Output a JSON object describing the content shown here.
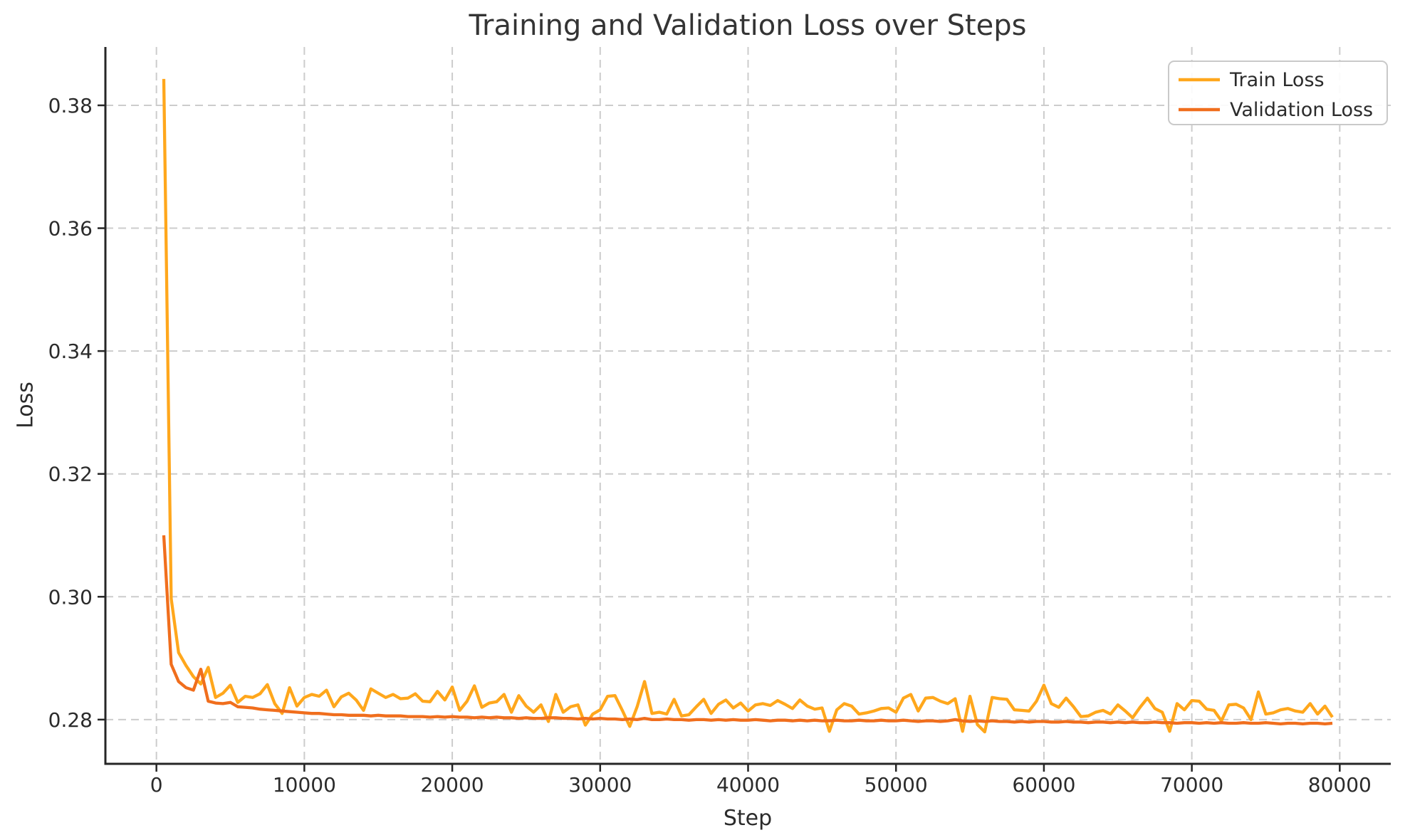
{
  "figure": {
    "background": "#ffffff",
    "title": "Training and Validation Loss over Steps",
    "xlabel": "Step",
    "ylabel": "Loss"
  },
  "styles": {
    "grid_color": "#cccccc",
    "spine_color": "#262626",
    "tick_color": "#262626",
    "tick_label_color": "#2b2b2b",
    "legend_border_color": "#c9c9c9",
    "legend_bg_color": "#ffffff",
    "train_color": "#FFA71C",
    "validation_color": "#F06E1D"
  },
  "chart_data": {
    "type": "line",
    "title": "Training and Validation Loss over Steps",
    "xlabel": "Step",
    "ylabel": "Loss",
    "grid": true,
    "grid_style": "dashed",
    "legend_position": "upper right",
    "xlim": [
      -3450,
      83450
    ],
    "ylim": [
      0.2728,
      0.3895
    ],
    "x_ticks": [
      0,
      10000,
      20000,
      30000,
      40000,
      50000,
      60000,
      70000,
      80000
    ],
    "y_ticks": [
      0.28,
      0.3,
      0.32,
      0.34,
      0.36,
      0.38
    ],
    "x": [
      500,
      1000,
      1500,
      2000,
      2500,
      3000,
      3500,
      4000,
      4500,
      5000,
      5500,
      6000,
      6500,
      7000,
      7500,
      8000,
      8500,
      9000,
      9500,
      10000,
      10500,
      11000,
      11500,
      12000,
      12500,
      13000,
      13500,
      14000,
      14500,
      15000,
      15500,
      16000,
      16500,
      17000,
      17500,
      18000,
      18500,
      19000,
      19500,
      20000,
      20500,
      21000,
      21500,
      22000,
      22500,
      23000,
      23500,
      24000,
      24500,
      25000,
      25500,
      26000,
      26500,
      27000,
      27500,
      28000,
      28500,
      29000,
      29500,
      30000,
      30500,
      31000,
      31500,
      32000,
      32500,
      33000,
      33500,
      34000,
      34500,
      35000,
      35500,
      36000,
      36500,
      37000,
      37500,
      38000,
      38500,
      39000,
      39500,
      40000,
      40500,
      41000,
      41500,
      42000,
      42500,
      43000,
      43500,
      44000,
      44500,
      45000,
      45500,
      46000,
      46500,
      47000,
      47500,
      48000,
      48500,
      49000,
      49500,
      50000,
      50500,
      51000,
      51500,
      52000,
      52500,
      53000,
      53500,
      54000,
      54500,
      55000,
      55500,
      56000,
      56500,
      57000,
      57500,
      58000,
      58500,
      59000,
      59500,
      60000,
      60500,
      61000,
      61500,
      62000,
      62500,
      63000,
      63500,
      64000,
      64500,
      65000,
      65500,
      66000,
      66500,
      67000,
      67500,
      68000,
      68500,
      69000,
      69500,
      70000,
      70500,
      71000,
      71500,
      72000,
      72500,
      73000,
      73500,
      74000,
      74500,
      75000,
      75500,
      76000,
      76500,
      77000,
      77500,
      78000,
      78500,
      79000,
      79500
    ],
    "series": [
      {
        "name": "Train Loss",
        "color": "#FFA71C",
        "values": [
          0.3843,
          0.2997,
          0.2909,
          0.2888,
          0.287,
          0.2858,
          0.2885,
          0.2836,
          0.2843,
          0.2856,
          0.2828,
          0.2838,
          0.2836,
          0.2842,
          0.2857,
          0.2826,
          0.281,
          0.2852,
          0.2822,
          0.2836,
          0.2841,
          0.2838,
          0.2848,
          0.2821,
          0.2837,
          0.2843,
          0.2832,
          0.2815,
          0.285,
          0.2843,
          0.2836,
          0.2841,
          0.2834,
          0.2835,
          0.2842,
          0.283,
          0.2829,
          0.2846,
          0.2832,
          0.2853,
          0.2815,
          0.283,
          0.2855,
          0.282,
          0.2827,
          0.2829,
          0.2841,
          0.2812,
          0.2839,
          0.2822,
          0.2812,
          0.2824,
          0.2797,
          0.2841,
          0.2812,
          0.2821,
          0.2824,
          0.2791,
          0.2809,
          0.2816,
          0.2838,
          0.2839,
          0.2815,
          0.2789,
          0.2821,
          0.2862,
          0.281,
          0.2812,
          0.2809,
          0.2833,
          0.2806,
          0.2808,
          0.2821,
          0.2833,
          0.281,
          0.2825,
          0.2832,
          0.2819,
          0.2827,
          0.2814,
          0.2824,
          0.2826,
          0.2823,
          0.2831,
          0.2825,
          0.2818,
          0.2832,
          0.2822,
          0.2817,
          0.2819,
          0.2781,
          0.2816,
          0.2826,
          0.2822,
          0.2809,
          0.2811,
          0.2814,
          0.2818,
          0.2819,
          0.2812,
          0.2835,
          0.2841,
          0.2814,
          0.2835,
          0.2836,
          0.283,
          0.2826,
          0.2834,
          0.2781,
          0.2838,
          0.2792,
          0.278,
          0.2836,
          0.2834,
          0.2833,
          0.2816,
          0.2815,
          0.2814,
          0.283,
          0.2856,
          0.2826,
          0.282,
          0.2835,
          0.2821,
          0.2805,
          0.2806,
          0.2812,
          0.2815,
          0.2809,
          0.2824,
          0.2814,
          0.2803,
          0.282,
          0.2835,
          0.2818,
          0.2812,
          0.2781,
          0.2826,
          0.2816,
          0.2831,
          0.283,
          0.2817,
          0.2815,
          0.2798,
          0.2824,
          0.2825,
          0.2819,
          0.28,
          0.2845,
          0.2809,
          0.2811,
          0.2816,
          0.2818,
          0.2814,
          0.2812,
          0.2826,
          0.2809,
          0.2822,
          0.2804
        ]
      },
      {
        "name": "Validation Loss",
        "color": "#F06E1D",
        "values": [
          0.31,
          0.289,
          0.2862,
          0.2852,
          0.2848,
          0.2882,
          0.283,
          0.2827,
          0.2826,
          0.2828,
          0.2821,
          0.282,
          0.2819,
          0.2817,
          0.2816,
          0.2815,
          0.2814,
          0.2813,
          0.2812,
          0.2811,
          0.281,
          0.281,
          0.2809,
          0.2808,
          0.2808,
          0.2807,
          0.2807,
          0.2807,
          0.2806,
          0.2807,
          0.2806,
          0.2806,
          0.2806,
          0.2805,
          0.2805,
          0.2805,
          0.2804,
          0.2805,
          0.2804,
          0.2805,
          0.2804,
          0.2804,
          0.2803,
          0.2804,
          0.2803,
          0.2804,
          0.2803,
          0.2803,
          0.2802,
          0.2803,
          0.2802,
          0.2802,
          0.2803,
          0.2803,
          0.2802,
          0.2802,
          0.2801,
          0.2802,
          0.2801,
          0.2802,
          0.2801,
          0.2801,
          0.28,
          0.2801,
          0.28,
          0.2802,
          0.28,
          0.28,
          0.2801,
          0.28,
          0.28,
          0.2799,
          0.28,
          0.28,
          0.2799,
          0.28,
          0.2799,
          0.28,
          0.2799,
          0.2799,
          0.28,
          0.2799,
          0.2798,
          0.2799,
          0.2799,
          0.2798,
          0.2799,
          0.2798,
          0.2799,
          0.2798,
          0.2798,
          0.2799,
          0.2798,
          0.2798,
          0.2799,
          0.2798,
          0.2798,
          0.2799,
          0.2798,
          0.2798,
          0.2799,
          0.2798,
          0.2797,
          0.2798,
          0.2798,
          0.2797,
          0.2798,
          0.28,
          0.2798,
          0.2797,
          0.2798,
          0.2797,
          0.2798,
          0.2797,
          0.2797,
          0.2796,
          0.2797,
          0.2796,
          0.2797,
          0.2797,
          0.2796,
          0.2796,
          0.2797,
          0.2796,
          0.2796,
          0.2795,
          0.2796,
          0.2796,
          0.2795,
          0.2796,
          0.2795,
          0.2796,
          0.2795,
          0.2795,
          0.2796,
          0.2795,
          0.2795,
          0.2794,
          0.2795,
          0.2795,
          0.2794,
          0.2795,
          0.2794,
          0.2795,
          0.2794,
          0.2794,
          0.2795,
          0.2794,
          0.2794,
          0.2795,
          0.2794,
          0.2793,
          0.2794,
          0.2794,
          0.2793,
          0.2794,
          0.2794,
          0.2793,
          0.2794
        ]
      }
    ],
    "legend_labels": [
      "Train Loss",
      "Validation Loss"
    ]
  }
}
